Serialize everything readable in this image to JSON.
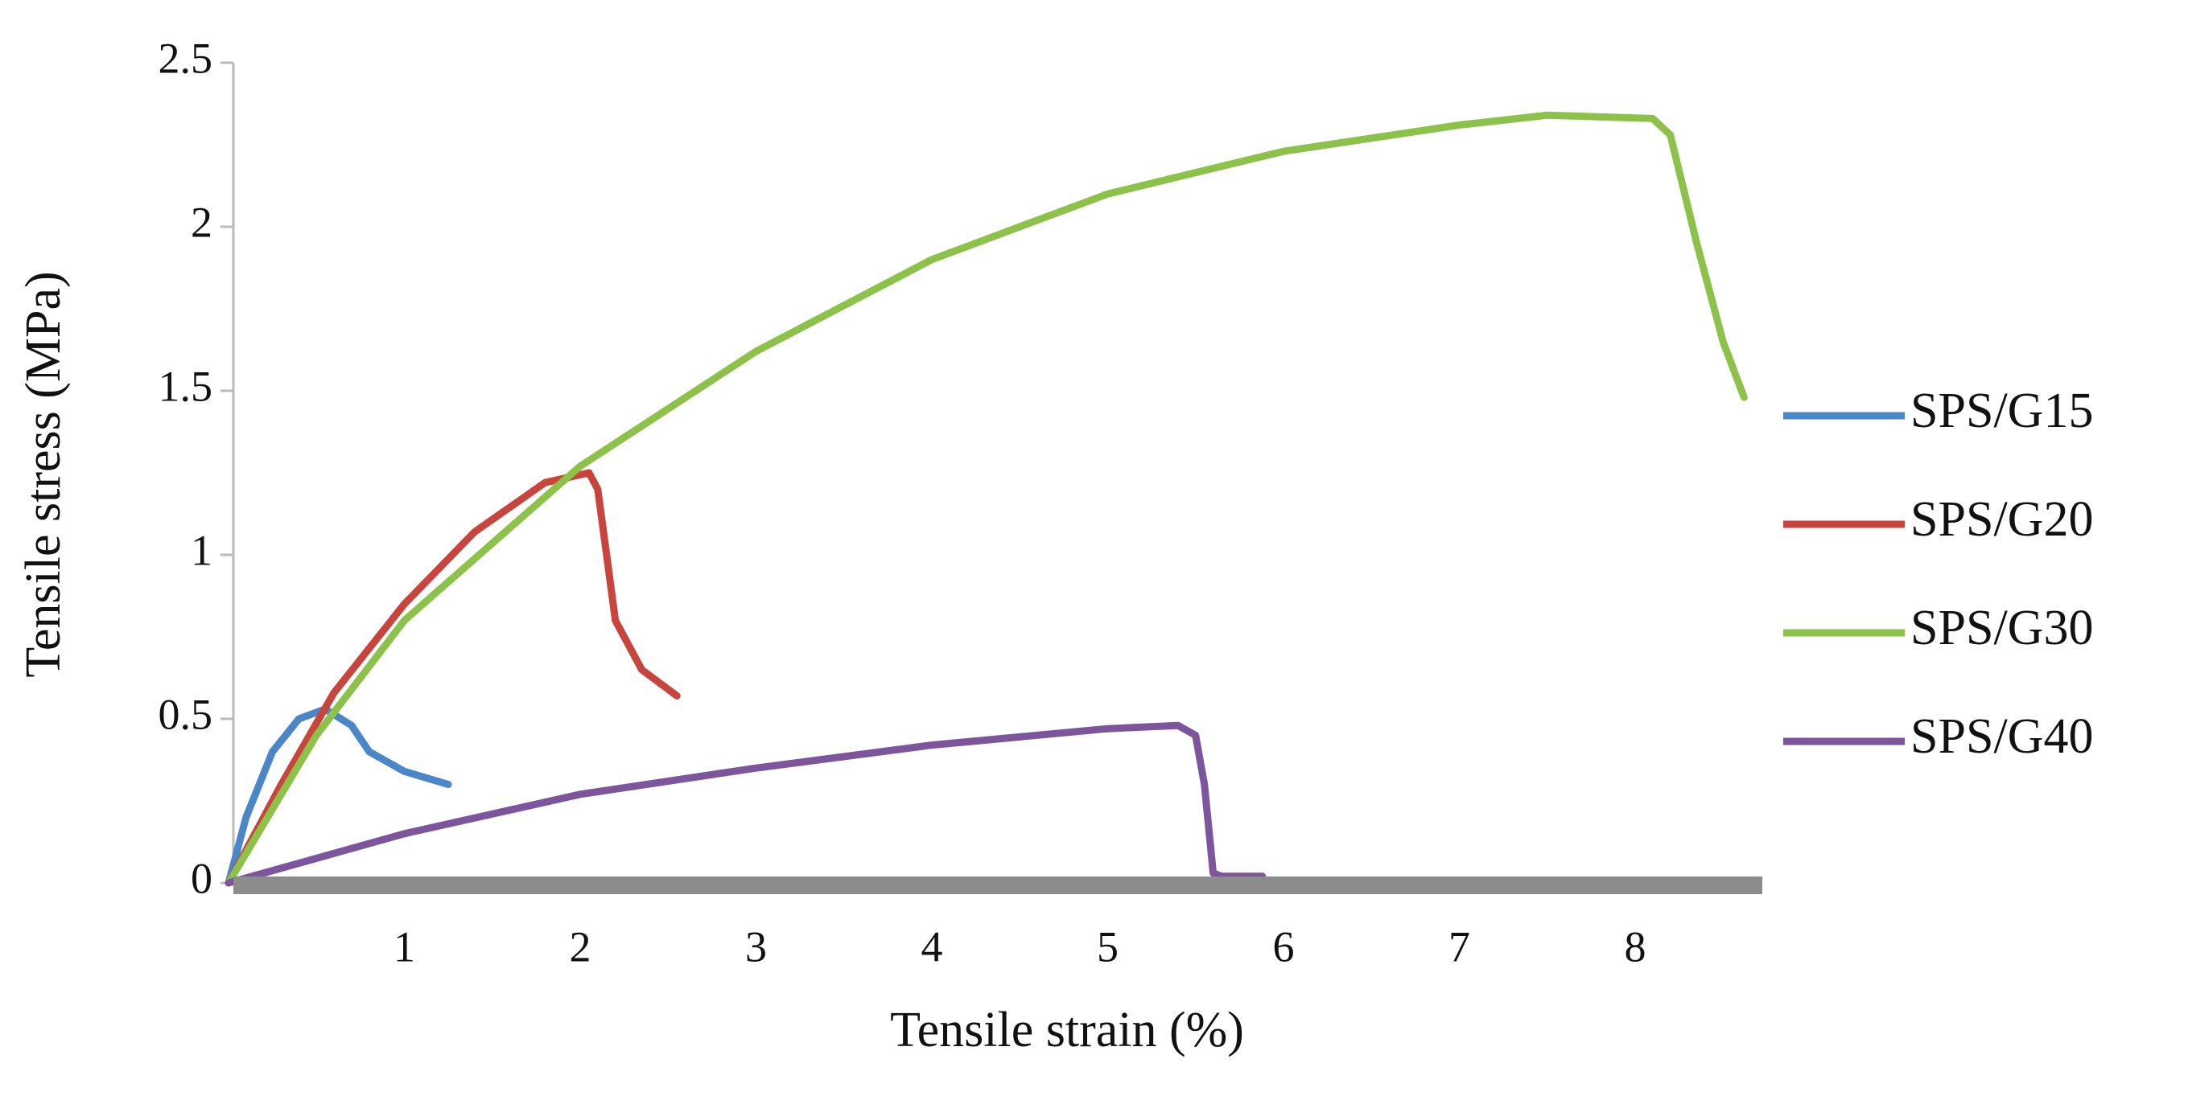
{
  "chart_data": {
    "type": "line",
    "x_label": "Tensile strain (%)",
    "y_label": "Tensile stress (MPa)",
    "xlim": [
      0,
      8.65
    ],
    "xticks": [
      1,
      2,
      3,
      4,
      5,
      6,
      7,
      8
    ],
    "ylim": [
      0,
      2.5
    ],
    "yticks": [
      0,
      0.5,
      1,
      1.5,
      2,
      2.5
    ],
    "legend": "right",
    "series": [
      {
        "name": "SPS/G15",
        "color": "#4a86c8",
        "x": [
          0,
          0.1,
          0.25,
          0.4,
          0.55,
          0.7,
          0.8,
          1.0,
          1.25
        ],
        "values": [
          0,
          0.2,
          0.4,
          0.5,
          0.53,
          0.48,
          0.4,
          0.34,
          0.3
        ]
      },
      {
        "name": "SPS/G20",
        "color": "#c8453e",
        "x": [
          0,
          0.3,
          0.6,
          1,
          1.4,
          1.8,
          2.05,
          2.1,
          2.15,
          2.2,
          2.35,
          2.55
        ],
        "values": [
          0,
          0.3,
          0.58,
          0.85,
          1.07,
          1.22,
          1.25,
          1.2,
          1.0,
          0.8,
          0.65,
          0.57
        ]
      },
      {
        "name": "SPS/G30",
        "color": "#8cc24a",
        "x": [
          0,
          0.5,
          1,
          2,
          3,
          4,
          5,
          6,
          7,
          7.5,
          8.1,
          8.2,
          8.35,
          8.5,
          8.62
        ],
        "values": [
          0,
          0.45,
          0.8,
          1.27,
          1.62,
          1.9,
          2.1,
          2.23,
          2.31,
          2.34,
          2.33,
          2.28,
          1.95,
          1.65,
          1.48
        ]
      },
      {
        "name": "SPS/G40",
        "color": "#7d559c",
        "x": [
          0,
          1,
          2,
          3,
          4,
          5,
          5.4,
          5.5,
          5.55,
          5.6,
          5.65,
          5.88
        ],
        "values": [
          0,
          0.15,
          0.27,
          0.35,
          0.42,
          0.47,
          0.48,
          0.45,
          0.3,
          0.03,
          0.02,
          0.02
        ]
      }
    ]
  }
}
